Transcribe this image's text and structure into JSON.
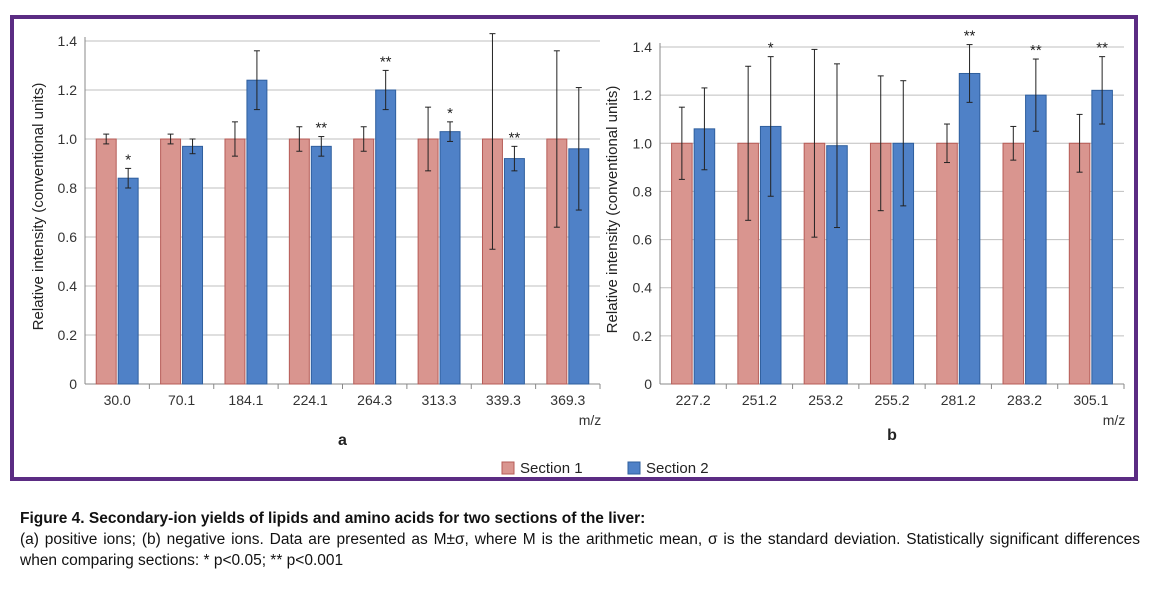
{
  "figure": {
    "legend": [
      "Section 1",
      "Section 2"
    ],
    "colors": {
      "section1": "#d9958f",
      "section1_stroke": "#b65c57",
      "section2": "#4f81c7",
      "section2_stroke": "#2f5f9e",
      "frame": "#5b2c83",
      "grid": "#bfbfbf"
    }
  },
  "caption": {
    "title": "Figure 4. Secondary-ion yields of lipids and amino acids for two sections of the liver:",
    "body": "(a) positive ions; (b) negative ions. Data are presented as M±σ, where M is the arithmetic mean, σ is the standard deviation. Statistically significant differences when comparing sections: * p<0.05; ** p<0.001"
  },
  "chart_data": [
    {
      "type": "bar",
      "panel_label": "a",
      "categories": [
        "30.0",
        "70.1",
        "184.1",
        "224.1",
        "264.3",
        "313.3",
        "339.3",
        "369.3"
      ],
      "xlabel": "m/z",
      "ylabel": "Relative intensity (conventional units)",
      "ylim": [
        0,
        1.4
      ],
      "yticks": [
        "0",
        "0.2",
        "0.4",
        "0.6",
        "0.8",
        "1.0",
        "1.2",
        "1.4"
      ],
      "grid": true,
      "series": [
        {
          "name": "Section 1",
          "values": [
            1.0,
            1.0,
            1.0,
            1.0,
            1.0,
            1.0,
            1.0,
            1.0
          ],
          "errors": [
            0.02,
            0.02,
            0.07,
            0.05,
            0.05,
            0.13,
            0.45,
            0.36
          ]
        },
        {
          "name": "Section 2",
          "values": [
            0.84,
            0.97,
            1.24,
            0.97,
            1.2,
            1.03,
            0.92,
            0.96
          ],
          "errors": [
            0.04,
            0.03,
            0.12,
            0.04,
            0.08,
            0.04,
            0.05,
            0.25
          ]
        }
      ],
      "significance": [
        "*",
        "",
        "",
        "**",
        "**",
        "*",
        "**",
        ""
      ]
    },
    {
      "type": "bar",
      "panel_label": "b",
      "categories": [
        "227.2",
        "251.2",
        "253.2",
        "255.2",
        "281.2",
        "283.2",
        "305.1"
      ],
      "xlabel": "m/z",
      "ylabel": "Relative intensity (conventional units)",
      "ylim": [
        0,
        1.4
      ],
      "yticks": [
        "0",
        "0.2",
        "0.4",
        "0.6",
        "0.8",
        "1.0",
        "1.2",
        "1.4"
      ],
      "grid": true,
      "series": [
        {
          "name": "Section 1",
          "values": [
            1.0,
            1.0,
            1.0,
            1.0,
            1.0,
            1.0,
            1.0
          ],
          "errors": [
            0.15,
            0.32,
            0.39,
            0.28,
            0.08,
            0.07,
            0.12
          ]
        },
        {
          "name": "Section 2",
          "values": [
            1.06,
            1.07,
            0.99,
            1.0,
            1.29,
            1.2,
            1.22
          ],
          "errors": [
            0.17,
            0.29,
            0.34,
            0.26,
            0.12,
            0.15,
            0.14
          ]
        }
      ],
      "significance": [
        "",
        "*",
        "",
        "",
        "**",
        "**",
        "**"
      ]
    }
  ]
}
